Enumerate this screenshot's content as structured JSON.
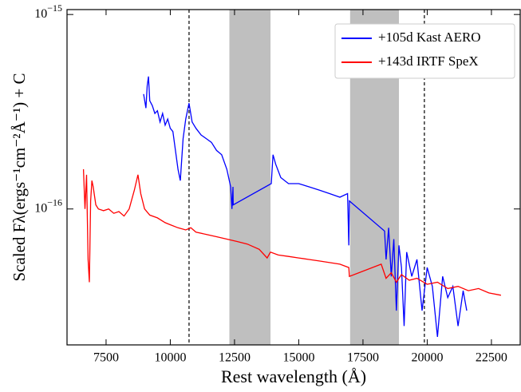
{
  "chart_data": {
    "type": "line",
    "xlabel": "Rest wavelength (Å)",
    "ylabel": "Scaled  Fλ(ergs⁻¹cm⁻²Å⁻¹) + C",
    "xlim": [
      5980,
      23620
    ],
    "ylim": [
      2e-17,
      1.06e-15
    ],
    "log_y": true,
    "xticks": [
      7500,
      10000,
      12500,
      15000,
      17500,
      20000,
      22500
    ],
    "yticks": [
      {
        "value": 1e-15,
        "label": "10^−15"
      },
      {
        "value": 1e-16,
        "label": "10^−16"
      }
    ],
    "legend": "upper right",
    "shaded_regions": [
      [
        12300,
        13900
      ],
      [
        17000,
        18900
      ]
    ],
    "shade_color": "#bfbfbf",
    "vlines": [
      10730,
      19890
    ],
    "series": [
      {
        "name": "+105d Kast AERO",
        "color": "#0000ff",
        "x": [
          8960,
          9050,
          9100,
          9150,
          9200,
          9300,
          9400,
          9500,
          9600,
          9700,
          9800,
          9900,
          10000,
          10100,
          10200,
          10300,
          10390,
          10500,
          10600,
          10730,
          10850,
          11000,
          11200,
          11400,
          11600,
          11800,
          12000,
          12200,
          12350,
          12400,
          12440,
          12450,
          13930,
          14000,
          14100,
          14300,
          14600,
          15000,
          15400,
          15800,
          16200,
          16600,
          16900,
          16950,
          16970,
          18340,
          18400,
          18500,
          18600,
          18700,
          18800,
          18900,
          19000,
          19100,
          19200,
          19400,
          19600,
          19800,
          20000,
          20200,
          20400,
          20600,
          20800,
          21000,
          21200,
          21400,
          21540
        ],
        "values": [
          3.9e-16,
          3.3e-16,
          4.3e-16,
          4.8e-16,
          3.6e-16,
          3.4e-16,
          3.1e-16,
          3.2e-16,
          2.8e-16,
          3.1e-16,
          2.7e-16,
          2.9e-16,
          2.6e-16,
          2.5e-16,
          2e-16,
          1.6e-16,
          1.4e-16,
          2.3e-16,
          2.9e-16,
          3.5e-16,
          2.8e-16,
          2.6e-16,
          2.4e-16,
          2.3e-16,
          2.2e-16,
          2e-16,
          1.9e-16,
          1.6e-16,
          1.3e-16,
          1e-16,
          1.3e-16,
          1.05e-16,
          1.35e-16,
          1.9e-16,
          1.7e-16,
          1.45e-16,
          1.35e-16,
          1.35e-16,
          1.3e-16,
          1.25e-16,
          1.2e-16,
          1.15e-16,
          1.2e-16,
          6.5e-17,
          1.1e-16,
          7.7e-17,
          5.5e-17,
          8e-17,
          4.5e-17,
          7e-17,
          3e-17,
          6.5e-17,
          5e-17,
          2.5e-17,
          6e-17,
          4.5e-17,
          5.5e-17,
          3e-17,
          5e-17,
          4e-17,
          2.2e-17,
          4.5e-17,
          3.5e-17,
          4e-17,
          2.5e-17,
          3.8e-17,
          3e-17
        ]
      },
      {
        "name": "+143d IRTF SpeX",
        "color": "#ff0000",
        "x": [
          6620,
          6680,
          6740,
          6800,
          6850,
          6900,
          6950,
          7000,
          7100,
          7200,
          7400,
          7600,
          7800,
          8000,
          8200,
          8400,
          8600,
          8740,
          8850,
          9000,
          9200,
          9500,
          9800,
          10000,
          10300,
          10600,
          10800,
          11000,
          11400,
          11800,
          12200,
          12600,
          13000,
          13460,
          13770,
          13900,
          14200,
          14600,
          15000,
          15400,
          15800,
          16200,
          16600,
          16950,
          16970,
          18210,
          18400,
          18600,
          18800,
          19000,
          19300,
          19600,
          20000,
          20400,
          20800,
          21200,
          21600,
          22000,
          22400,
          22870
        ],
        "values": [
          1.6e-16,
          1e-16,
          1.5e-16,
          5.5e-17,
          4.2e-17,
          1.1e-16,
          1.4e-16,
          1.3e-16,
          1.05e-16,
          1e-16,
          9.8e-17,
          1e-16,
          9.5e-17,
          9.7e-17,
          9.2e-17,
          1e-16,
          1.25e-16,
          1.5e-16,
          1.2e-16,
          1e-16,
          9.3e-17,
          9e-17,
          8.5e-17,
          8.3e-17,
          8e-17,
          7.8e-17,
          8e-17,
          7.6e-17,
          7.4e-17,
          7.2e-17,
          7e-17,
          6.8e-17,
          6.6e-17,
          6.2e-17,
          5.6e-17,
          6e-17,
          5.8e-17,
          5.7e-17,
          5.6e-17,
          5.5e-17,
          5.4e-17,
          5.3e-17,
          5.2e-17,
          5e-17,
          4.5e-17,
          5.2e-17,
          4.4e-17,
          4.7e-17,
          4.2e-17,
          4.6e-17,
          4.3e-17,
          4.4e-17,
          4.1e-17,
          4.2e-17,
          3.9e-17,
          4e-17,
          3.8e-17,
          3.9e-17,
          3.7e-17,
          3.6e-17
        ]
      }
    ]
  }
}
